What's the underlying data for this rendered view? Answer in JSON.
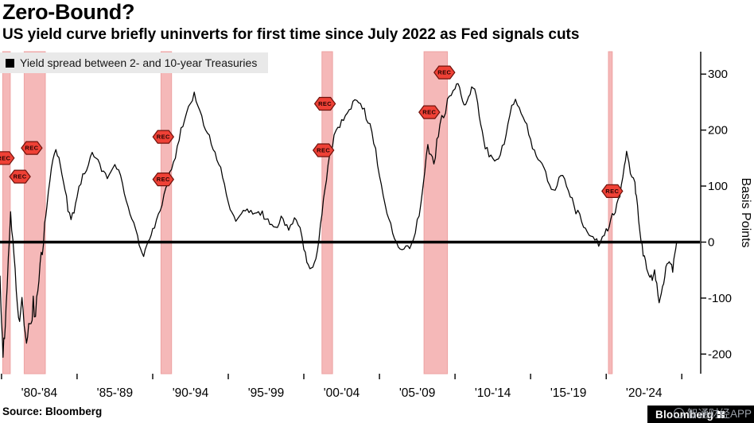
{
  "header": {
    "title": "Zero-Bound?",
    "subtitle": "US yield curve briefly uninverts for first time since July 2022 as Fed signals cuts"
  },
  "legend": {
    "swatch_color": "#000000",
    "label": "Yield spread between 2- and 10-year Treasuries"
  },
  "footer": {
    "source": "Source: Bloomberg",
    "brand": "Bloomberg",
    "watermark": "智通财经APP"
  },
  "chart_data": {
    "type": "line",
    "title": "Zero-Bound?",
    "subtitle": "US yield curve briefly uninverts for first time since July 2022 as Fed signals cuts",
    "legend": "Yield spread between 2- and 10-year Treasuries",
    "ylabel": "Basis Points",
    "y_ticks": [
      300,
      200,
      100,
      0,
      -100,
      -200
    ],
    "ylim": [
      -235,
      340
    ],
    "x_domain": [
      1979.9,
      2026.2
    ],
    "x_tick_years": [
      1980,
      1985,
      1990,
      1995,
      2000,
      2005,
      2010,
      2015,
      2020,
      2025
    ],
    "x_tick_labels": [
      "'80-'84",
      "'85-'89",
      "'90-'94",
      "'95-'99",
      "'00-'04",
      "'05-'09",
      "'10-'14",
      "'15-'19",
      "'20-'24"
    ],
    "zero_line": 0,
    "grid": false,
    "line_color": "#000000",
    "recession_band_color": "#f5b8b8",
    "recession_band_edge": "#eda2a2",
    "badge_fill": "#ef4136",
    "badge_edge": "#6e120c",
    "badge_text_color": "#260200",
    "recessions": [
      {
        "start": 1980.08,
        "end": 1980.58
      },
      {
        "start": 1981.5,
        "end": 1982.9
      },
      {
        "start": 1990.55,
        "end": 1991.25
      },
      {
        "start": 2001.2,
        "end": 2001.9
      },
      {
        "start": 2007.95,
        "end": 2009.5
      },
      {
        "start": 2020.15,
        "end": 2020.4
      }
    ],
    "rec_badges": [
      {
        "year": 1980.15,
        "bps": 150,
        "label": "REC"
      },
      {
        "year": 1981.22,
        "bps": 117,
        "label": "REC"
      },
      {
        "year": 1982.0,
        "bps": 168,
        "label": "REC"
      },
      {
        "year": 1990.7,
        "bps": 188,
        "label": "REC"
      },
      {
        "year": 1990.7,
        "bps": 112,
        "label": "REC"
      },
      {
        "year": 2001.4,
        "bps": 247,
        "label": "REC"
      },
      {
        "year": 2001.3,
        "bps": 164,
        "label": "REC"
      },
      {
        "year": 2008.3,
        "bps": 232,
        "label": "REC"
      },
      {
        "year": 2009.3,
        "bps": 303,
        "label": "REC"
      },
      {
        "year": 2020.4,
        "bps": 91,
        "label": "REC"
      }
    ],
    "series": [
      {
        "name": "Yield spread between 2- and 10-year Treasuries",
        "points": [
          [
            1979.9,
            -60
          ],
          [
            1980.0,
            -130
          ],
          [
            1980.1,
            -195
          ],
          [
            1980.2,
            -160
          ],
          [
            1980.3,
            -115
          ],
          [
            1980.45,
            -35
          ],
          [
            1980.6,
            50
          ],
          [
            1980.75,
            15
          ],
          [
            1980.9,
            -45
          ],
          [
            1981.05,
            -105
          ],
          [
            1981.2,
            -155
          ],
          [
            1981.35,
            -110
          ],
          [
            1981.5,
            -150
          ],
          [
            1981.65,
            -175
          ],
          [
            1981.8,
            -140
          ],
          [
            1981.95,
            -158
          ],
          [
            1982.1,
            -110
          ],
          [
            1982.25,
            -128
          ],
          [
            1982.4,
            -80
          ],
          [
            1982.55,
            -45
          ],
          [
            1982.7,
            -12
          ],
          [
            1982.85,
            25
          ],
          [
            1983.0,
            65
          ],
          [
            1983.2,
            115
          ],
          [
            1983.4,
            150
          ],
          [
            1983.6,
            165
          ],
          [
            1983.8,
            148
          ],
          [
            1984.0,
            125
          ],
          [
            1984.2,
            95
          ],
          [
            1984.4,
            60
          ],
          [
            1984.6,
            38
          ],
          [
            1984.8,
            55
          ],
          [
            1985.0,
            85
          ],
          [
            1985.25,
            108
          ],
          [
            1985.5,
            125
          ],
          [
            1985.75,
            140
          ],
          [
            1986.0,
            158
          ],
          [
            1986.25,
            150
          ],
          [
            1986.5,
            138
          ],
          [
            1986.75,
            124
          ],
          [
            1987.0,
            112
          ],
          [
            1987.25,
            130
          ],
          [
            1987.5,
            142
          ],
          [
            1987.75,
            128
          ],
          [
            1988.0,
            100
          ],
          [
            1988.25,
            78
          ],
          [
            1988.5,
            55
          ],
          [
            1988.75,
            32
          ],
          [
            1989.0,
            8
          ],
          [
            1989.2,
            -14
          ],
          [
            1989.4,
            -24
          ],
          [
            1989.6,
            -6
          ],
          [
            1989.8,
            8
          ],
          [
            1990.0,
            22
          ],
          [
            1990.25,
            40
          ],
          [
            1990.5,
            60
          ],
          [
            1990.75,
            82
          ],
          [
            1991.0,
            108
          ],
          [
            1991.25,
            132
          ],
          [
            1991.5,
            155
          ],
          [
            1991.75,
            185
          ],
          [
            1992.0,
            212
          ],
          [
            1992.25,
            235
          ],
          [
            1992.5,
            252
          ],
          [
            1992.75,
            262
          ],
          [
            1993.0,
            242
          ],
          [
            1993.25,
            222
          ],
          [
            1993.5,
            204
          ],
          [
            1993.75,
            186
          ],
          [
            1994.0,
            168
          ],
          [
            1994.25,
            150
          ],
          [
            1994.5,
            128
          ],
          [
            1994.75,
            104
          ],
          [
            1995.0,
            72
          ],
          [
            1995.25,
            52
          ],
          [
            1995.5,
            38
          ],
          [
            1995.75,
            44
          ],
          [
            1996.0,
            52
          ],
          [
            1996.25,
            60
          ],
          [
            1996.5,
            55
          ],
          [
            1996.75,
            46
          ],
          [
            1997.0,
            55
          ],
          [
            1997.25,
            50
          ],
          [
            1997.5,
            42
          ],
          [
            1997.75,
            36
          ],
          [
            1998.0,
            22
          ],
          [
            1998.25,
            28
          ],
          [
            1998.5,
            42
          ],
          [
            1998.75,
            30
          ],
          [
            1999.0,
            24
          ],
          [
            1999.25,
            34
          ],
          [
            1999.5,
            44
          ],
          [
            1999.75,
            26
          ],
          [
            2000.0,
            -8
          ],
          [
            2000.2,
            -38
          ],
          [
            2000.4,
            -48
          ],
          [
            2000.6,
            -40
          ],
          [
            2000.8,
            -34
          ],
          [
            2001.0,
            10
          ],
          [
            2001.2,
            55
          ],
          [
            2001.4,
            95
          ],
          [
            2001.6,
            135
          ],
          [
            2001.8,
            165
          ],
          [
            2002.0,
            188
          ],
          [
            2002.25,
            202
          ],
          [
            2002.5,
            214
          ],
          [
            2002.75,
            226
          ],
          [
            2003.0,
            238
          ],
          [
            2003.25,
            248
          ],
          [
            2003.5,
            258
          ],
          [
            2003.75,
            248
          ],
          [
            2004.0,
            234
          ],
          [
            2004.25,
            215
          ],
          [
            2004.5,
            196
          ],
          [
            2004.75,
            162
          ],
          [
            2005.0,
            118
          ],
          [
            2005.25,
            86
          ],
          [
            2005.5,
            56
          ],
          [
            2005.75,
            28
          ],
          [
            2006.0,
            4
          ],
          [
            2006.25,
            -6
          ],
          [
            2006.5,
            -10
          ],
          [
            2006.75,
            -4
          ],
          [
            2007.0,
            -9
          ],
          [
            2007.25,
            6
          ],
          [
            2007.5,
            38
          ],
          [
            2007.75,
            72
          ],
          [
            2008.0,
            132
          ],
          [
            2008.2,
            172
          ],
          [
            2008.4,
            152
          ],
          [
            2008.6,
            138
          ],
          [
            2008.8,
            182
          ],
          [
            2009.0,
            205
          ],
          [
            2009.25,
            228
          ],
          [
            2009.5,
            248
          ],
          [
            2009.75,
            264
          ],
          [
            2010.0,
            276
          ],
          [
            2010.2,
            288
          ],
          [
            2010.4,
            268
          ],
          [
            2010.6,
            240
          ],
          [
            2010.8,
            252
          ],
          [
            2011.0,
            268
          ],
          [
            2011.2,
            278
          ],
          [
            2011.4,
            260
          ],
          [
            2011.6,
            228
          ],
          [
            2011.8,
            196
          ],
          [
            2012.0,
            172
          ],
          [
            2012.25,
            158
          ],
          [
            2012.5,
            146
          ],
          [
            2012.75,
            142
          ],
          [
            2013.0,
            158
          ],
          [
            2013.25,
            178
          ],
          [
            2013.5,
            210
          ],
          [
            2013.75,
            240
          ],
          [
            2014.0,
            258
          ],
          [
            2014.25,
            240
          ],
          [
            2014.5,
            220
          ],
          [
            2014.75,
            205
          ],
          [
            2015.0,
            178
          ],
          [
            2015.25,
            164
          ],
          [
            2015.5,
            152
          ],
          [
            2015.75,
            138
          ],
          [
            2016.0,
            122
          ],
          [
            2016.25,
            104
          ],
          [
            2016.5,
            88
          ],
          [
            2016.75,
            98
          ],
          [
            2017.0,
            122
          ],
          [
            2017.25,
            112
          ],
          [
            2017.5,
            95
          ],
          [
            2017.75,
            76
          ],
          [
            2018.0,
            56
          ],
          [
            2018.25,
            46
          ],
          [
            2018.5,
            30
          ],
          [
            2018.75,
            18
          ],
          [
            2019.0,
            14
          ],
          [
            2019.25,
            4
          ],
          [
            2019.5,
            -3
          ],
          [
            2019.75,
            8
          ],
          [
            2020.0,
            18
          ],
          [
            2020.2,
            32
          ],
          [
            2020.4,
            48
          ],
          [
            2020.6,
            58
          ],
          [
            2020.8,
            72
          ],
          [
            2021.0,
            98
          ],
          [
            2021.2,
            142
          ],
          [
            2021.35,
            158
          ],
          [
            2021.5,
            138
          ],
          [
            2021.7,
            118
          ],
          [
            2021.9,
            102
          ],
          [
            2022.0,
            82
          ],
          [
            2022.15,
            40
          ],
          [
            2022.3,
            5
          ],
          [
            2022.45,
            -22
          ],
          [
            2022.6,
            -35
          ],
          [
            2022.75,
            -48
          ],
          [
            2022.9,
            -60
          ],
          [
            2023.05,
            -68
          ],
          [
            2023.2,
            -52
          ],
          [
            2023.35,
            -75
          ],
          [
            2023.5,
            -105
          ],
          [
            2023.65,
            -88
          ],
          [
            2023.8,
            -70
          ],
          [
            2023.95,
            -45
          ],
          [
            2024.1,
            -35
          ],
          [
            2024.25,
            -42
          ],
          [
            2024.4,
            -48
          ],
          [
            2024.55,
            -25
          ],
          [
            2024.65,
            -8
          ],
          [
            2024.72,
            2
          ]
        ]
      }
    ]
  }
}
